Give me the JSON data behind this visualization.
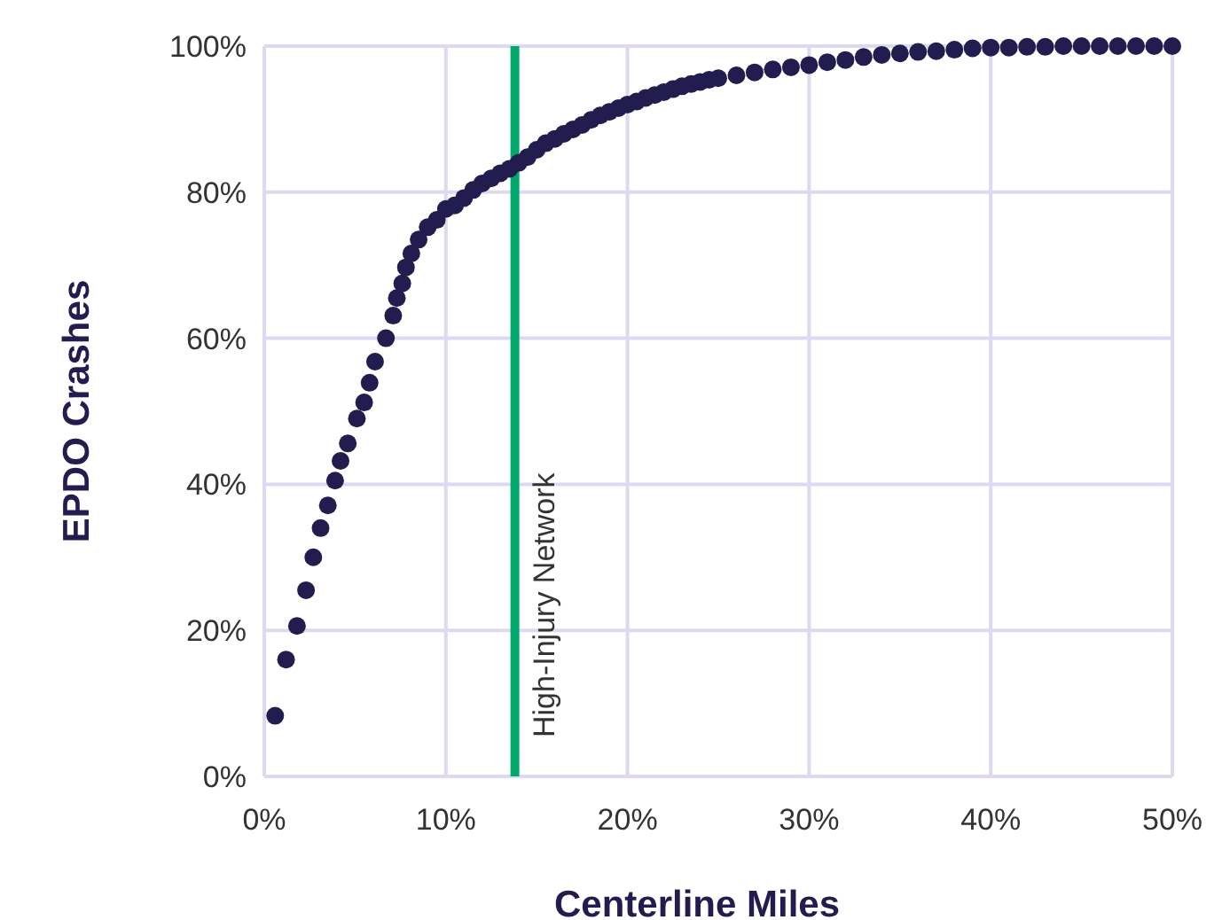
{
  "chart_data": {
    "type": "scatter",
    "xlabel": "Centerline Miles",
    "ylabel": "EPDO Crashes",
    "xlim": [
      0,
      50
    ],
    "ylim": [
      0,
      100
    ],
    "xticks": [
      {
        "value": 0,
        "label": "0%"
      },
      {
        "value": 10,
        "label": "10%"
      },
      {
        "value": 20,
        "label": "20%"
      },
      {
        "value": 30,
        "label": "30%"
      },
      {
        "value": 40,
        "label": "40%"
      },
      {
        "value": 50,
        "label": "50%"
      }
    ],
    "yticks": [
      {
        "value": 0,
        "label": "0%"
      },
      {
        "value": 20,
        "label": "20%"
      },
      {
        "value": 40,
        "label": "40%"
      },
      {
        "value": 60,
        "label": "60%"
      },
      {
        "value": 80,
        "label": "80%"
      },
      {
        "value": 100,
        "label": "100%"
      }
    ],
    "grid": true,
    "marker": "circle",
    "ref_lines": [
      {
        "axis": "x",
        "value": 13.8,
        "label": "High-Injury Network",
        "color": "#00a86b"
      }
    ],
    "series": [
      {
        "color": "#221c4f",
        "x": [
          0.6,
          1.2,
          1.8,
          2.3,
          2.7,
          3.1,
          3.5,
          3.9,
          4.2,
          4.6,
          5.1,
          5.5,
          5.8,
          6.1,
          6.7,
          7.1,
          7.3,
          7.6,
          7.8,
          8.1,
          8.5,
          9,
          9.5,
          10,
          10.5,
          11,
          11.5,
          12,
          12.5,
          13,
          13.5,
          14,
          14.5,
          15,
          15.5,
          16,
          16.5,
          17,
          17.5,
          18,
          18.5,
          19,
          19.5,
          20,
          20.5,
          21,
          21.5,
          22,
          22.5,
          23,
          23.5,
          24,
          24.5,
          25,
          26,
          27,
          28,
          29,
          30,
          31,
          32,
          33,
          34,
          35,
          36,
          37,
          38,
          39,
          40,
          41,
          42,
          43,
          44,
          45,
          46,
          47,
          48,
          49,
          50
        ],
        "values": [
          8.3,
          16,
          20.6,
          25.5,
          30,
          34,
          37.1,
          40.5,
          43.2,
          45.6,
          49,
          51.2,
          53.9,
          56.8,
          60,
          63.1,
          65.5,
          67.5,
          69.7,
          71.6,
          73.5,
          75.2,
          76.2,
          77.7,
          78.2,
          79.2,
          80.3,
          81.2,
          81.9,
          82.6,
          83.2,
          84,
          84.8,
          85.8,
          86.7,
          87.3,
          88,
          88.6,
          89.2,
          89.9,
          90.5,
          91,
          91.5,
          92,
          92.4,
          92.9,
          93.3,
          93.7,
          94.1,
          94.5,
          94.8,
          95.1,
          95.4,
          95.6,
          96,
          96.4,
          96.8,
          97.1,
          97.4,
          97.8,
          98.1,
          98.5,
          98.8,
          99,
          99.2,
          99.3,
          99.5,
          99.7,
          99.8,
          99.8,
          99.9,
          99.9,
          100,
          100,
          100,
          100,
          100,
          100,
          100
        ]
      }
    ]
  }
}
